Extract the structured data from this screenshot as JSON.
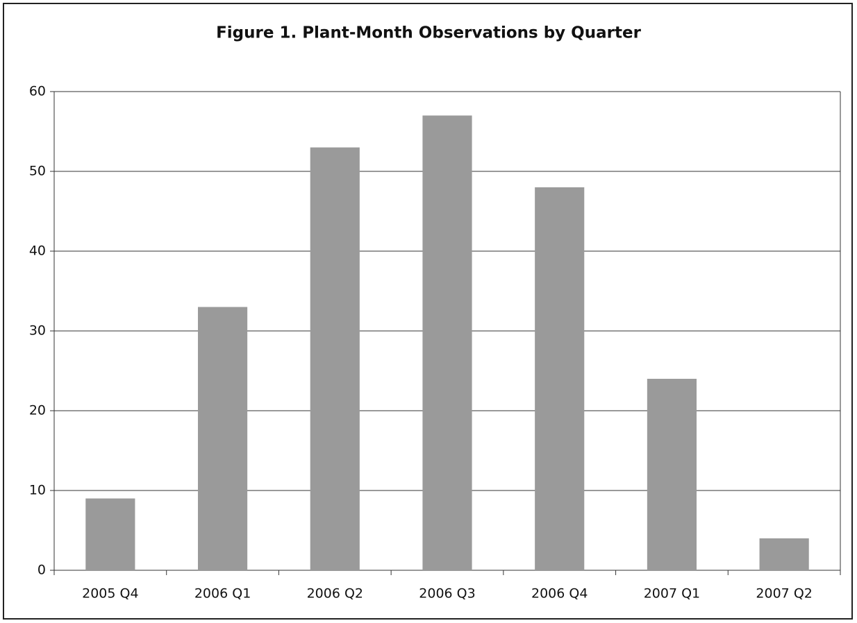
{
  "chart_data": {
    "type": "bar",
    "title": "Figure 1.  Plant-Month Observations by Quarter",
    "categories": [
      "2005 Q4",
      "2006 Q1",
      "2006 Q2",
      "2006 Q3",
      "2006 Q4",
      "2007 Q1",
      "2007 Q2"
    ],
    "values": [
      9,
      33,
      53,
      57,
      48,
      24,
      4
    ],
    "color": "#9a9a9a",
    "ylim": [
      0,
      60
    ],
    "yticks": [
      0,
      10,
      20,
      30,
      40,
      50,
      60
    ],
    "grid": true
  }
}
